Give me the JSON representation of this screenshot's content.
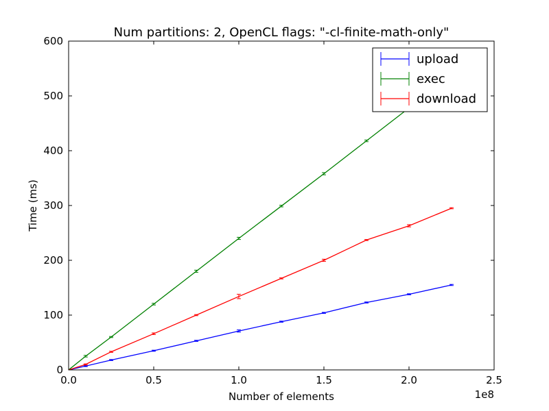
{
  "chart_data": {
    "type": "line",
    "title": "Num partitions: 2, OpenCL flags: \"-cl-finite-math-only\"",
    "xlabel": "Number of elements",
    "ylabel": "Time (ms)",
    "x_offset_label": "1e8",
    "xlim": [
      0,
      2.5
    ],
    "ylim": [
      0,
      600
    ],
    "x_ticks": [
      0.0,
      0.5,
      1.0,
      1.5,
      2.0,
      2.5
    ],
    "x_tick_labels": [
      "0.0",
      "0.5",
      "1.0",
      "1.5",
      "2.0",
      "2.5"
    ],
    "y_ticks": [
      0,
      100,
      200,
      300,
      400,
      500,
      600
    ],
    "y_tick_labels": [
      "0",
      "100",
      "200",
      "300",
      "400",
      "500",
      "600"
    ],
    "x": [
      0.0,
      0.1,
      0.25,
      0.5,
      0.75,
      1.0,
      1.25,
      1.5,
      1.75,
      2.0,
      2.25
    ],
    "legend_placement": "upper-right",
    "grid": false,
    "series": [
      {
        "name": "upload",
        "color": "#0000ff",
        "values": [
          0,
          7,
          18,
          35,
          53,
          71,
          88,
          104,
          123,
          138,
          155
        ],
        "errors": [
          0.5,
          1,
          1,
          1,
          1,
          2,
          1,
          1,
          1,
          1,
          1
        ]
      },
      {
        "name": "exec",
        "color": "#008000",
        "values": [
          0,
          25,
          60,
          120,
          180,
          240,
          299,
          358,
          418,
          478,
          538
        ],
        "errors": [
          0.5,
          1.5,
          1,
          1.5,
          2,
          2,
          1.5,
          2,
          1.5,
          1.5,
          1.5
        ]
      },
      {
        "name": "download",
        "color": "#ff0000",
        "values": [
          0,
          10,
          33,
          66,
          100,
          134,
          167,
          200,
          237,
          263,
          295
        ],
        "errors": [
          0.5,
          1,
          1,
          1.5,
          1,
          4,
          1,
          2,
          1,
          2,
          1
        ]
      }
    ]
  }
}
